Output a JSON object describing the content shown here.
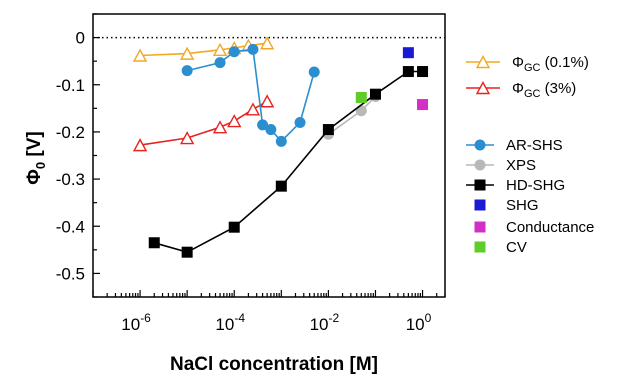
{
  "chart_data": {
    "type": "scatter",
    "title": "",
    "xlabel": "NaCl concentration [M]",
    "ylabel_main": "Φ",
    "ylabel_sub": "0",
    "ylabel_unit": " [V]",
    "x_scale": "log",
    "xlim": [
      1e-07,
      3
    ],
    "ylim": [
      -0.55,
      0.05
    ],
    "x_ticks": [
      {
        "value": 1e-06,
        "base": "10",
        "exp": "-6"
      },
      {
        "value": 0.0001,
        "base": "10",
        "exp": "-4"
      },
      {
        "value": 0.01,
        "base": "10",
        "exp": "-2"
      },
      {
        "value": 1,
        "base": "10",
        "exp": "0"
      }
    ],
    "y_ticks": [
      {
        "value": 0,
        "label": "0"
      },
      {
        "value": -0.1,
        "label": "-0.1"
      },
      {
        "value": -0.2,
        "label": "-0.2"
      },
      {
        "value": -0.3,
        "label": "-0.3"
      },
      {
        "value": -0.4,
        "label": "-0.4"
      },
      {
        "value": -0.5,
        "label": "-0.5"
      }
    ],
    "zero_line": "dotted",
    "grid": false,
    "series": [
      {
        "name": "Φ_GC (0.1%)",
        "legend_main": "Φ",
        "legend_sub": "GC",
        "legend_suffix": " (0.1%)",
        "color": "#f2a825",
        "marker": "open-triangle",
        "line": true,
        "x": [
          1e-06,
          1e-05,
          5e-05,
          0.0001,
          0.0002,
          0.0005
        ],
        "y": [
          -0.038,
          -0.034,
          -0.026,
          -0.022,
          -0.017,
          -0.012
        ]
      },
      {
        "name": "Φ_GC (3%)",
        "legend_main": "Φ",
        "legend_sub": "GC",
        "legend_suffix": " (3%)",
        "color": "#e8221f",
        "marker": "open-triangle",
        "line": true,
        "x": [
          1e-06,
          1e-05,
          5e-05,
          0.0001,
          0.00025,
          0.0005
        ],
        "y": [
          -0.228,
          -0.213,
          -0.19,
          -0.177,
          -0.152,
          -0.135
        ]
      },
      {
        "name": "AR-SHS",
        "legend_main": "AR-SHS",
        "legend_sub": "",
        "legend_suffix": "",
        "color": "#2b8fcf",
        "marker": "circle",
        "line": true,
        "x": [
          1e-05,
          5e-05,
          0.0001,
          0.00025,
          0.0004,
          0.0006,
          0.001,
          0.0025,
          0.005
        ],
        "y": [
          -0.07,
          -0.053,
          -0.03,
          -0.025,
          -0.185,
          -0.195,
          -0.22,
          -0.18,
          -0.073
        ]
      },
      {
        "name": "XPS",
        "legend_main": "XPS",
        "legend_sub": "",
        "legend_suffix": "",
        "color": "#b8b8b8",
        "marker": "circle",
        "line": true,
        "x": [
          0.01,
          0.05,
          0.1
        ],
        "y": [
          -0.205,
          -0.155,
          -0.125
        ]
      },
      {
        "name": "HD-SHG",
        "legend_main": "HD-SHG",
        "legend_sub": "",
        "legend_suffix": "",
        "color": "#000000",
        "marker": "square",
        "line": true,
        "x": [
          2e-06,
          1e-05,
          0.0001,
          0.001,
          0.01,
          0.1,
          0.5,
          1.0
        ],
        "y": [
          -0.435,
          -0.455,
          -0.402,
          -0.315,
          -0.195,
          -0.12,
          -0.072,
          -0.072
        ]
      },
      {
        "name": "SHG",
        "legend_main": "SHG",
        "legend_sub": "",
        "legend_suffix": "",
        "color": "#1a1ad4",
        "marker": "square",
        "line": false,
        "x": [
          0.5
        ],
        "y": [
          -0.032
        ]
      },
      {
        "name": "Conductance",
        "legend_main": "Conductance",
        "legend_sub": "",
        "legend_suffix": "",
        "color": "#d42fc4",
        "marker": "square",
        "line": false,
        "x": [
          1.0
        ],
        "y": [
          -0.142
        ]
      },
      {
        "name": "CV",
        "legend_main": "CV",
        "legend_sub": "",
        "legend_suffix": "",
        "color": "#5fcc2a",
        "marker": "square",
        "line": false,
        "x": [
          0.05
        ],
        "y": [
          -0.127
        ]
      }
    ],
    "legend_top": [
      "Φ_GC (0.1%)",
      "Φ_GC (3%)"
    ],
    "legend_bottom": [
      "AR-SHS",
      "XPS",
      "HD-SHG",
      "SHG",
      "Conductance",
      "CV"
    ],
    "legend_placement": "right"
  }
}
